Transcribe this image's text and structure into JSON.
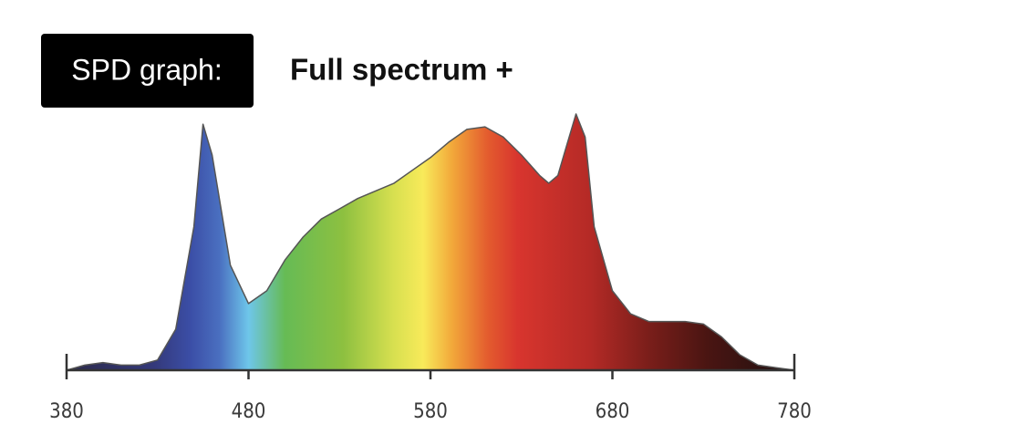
{
  "chart_data": {
    "type": "area",
    "label": "SPD graph:",
    "title": "Full spectrum +",
    "x": [
      380,
      390,
      400,
      410,
      420,
      430,
      440,
      450,
      455,
      460,
      470,
      480,
      490,
      500,
      510,
      520,
      530,
      540,
      550,
      560,
      570,
      580,
      590,
      600,
      610,
      620,
      630,
      640,
      645,
      650,
      655,
      660,
      665,
      670,
      680,
      690,
      700,
      710,
      720,
      730,
      740,
      750,
      760,
      770,
      780
    ],
    "values": [
      0,
      2,
      3,
      2,
      2,
      4,
      16,
      56,
      96,
      84,
      41,
      26,
      31,
      43,
      52,
      59,
      63,
      67,
      70,
      73,
      78,
      83,
      89,
      94,
      95,
      91,
      84,
      76,
      73,
      76,
      88,
      100,
      91,
      56,
      31,
      22,
      19,
      19,
      19,
      18,
      13,
      6,
      2,
      1,
      0
    ],
    "xlim": [
      380,
      780
    ],
    "xticks": [
      380,
      480,
      580,
      680,
      780
    ],
    "ylim": [
      0,
      100
    ]
  }
}
